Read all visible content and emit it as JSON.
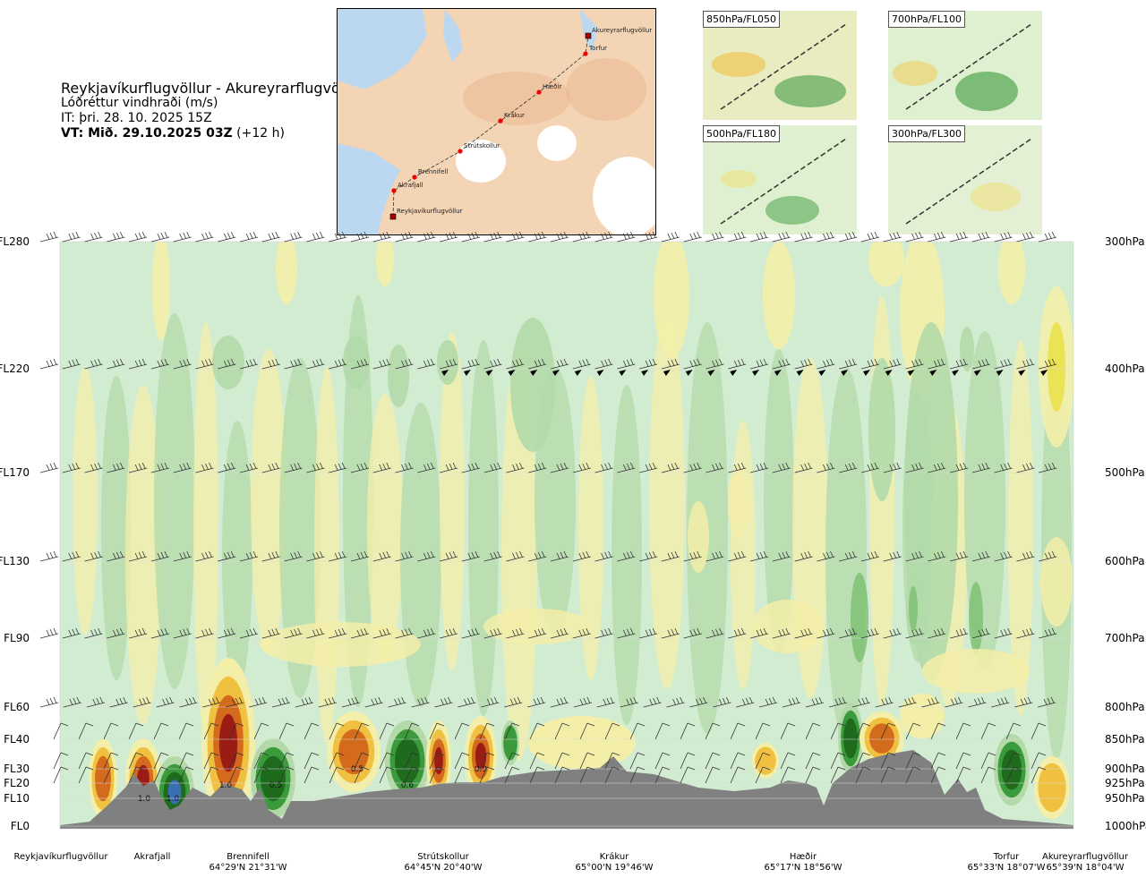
{
  "title": {
    "route": "Reykjavíkurflugvöllur - Akureyrarflugvöllur",
    "variable": "Lóðréttur vindhraði (m/s)",
    "it": "IT: þri. 28. 10. 2025 15Z",
    "vt_bold": "VT: Mið. 29.10.2025 03Z",
    "vt_rest": " (+12 h)"
  },
  "map": {
    "waypoints": [
      "Reykjavíkurflugvöllur",
      "Akrafjall",
      "Brennifell",
      "Strútskollur",
      "Krákur",
      "Hæðir",
      "Torfur",
      "Akureyrarflugvöllur"
    ]
  },
  "mini_maps": [
    {
      "label": "850hPa/FL050"
    },
    {
      "label": "700hPa/FL100"
    },
    {
      "label": "500hPa/FL180"
    },
    {
      "label": "300hPa/FL300"
    }
  ],
  "chart_data": {
    "type": "heatmap",
    "title": "Lóðréttur vindhraði (m/s)",
    "left_axis": [
      "FL0",
      "FL10",
      "FL20",
      "FL30",
      "FL40",
      "FL60",
      "FL90",
      "FL130",
      "FL170",
      "FL220",
      "FL280"
    ],
    "right_axis": [
      "1000hPa",
      "950hPa",
      "925hPa",
      "900hPa",
      "850hPa",
      "800hPa",
      "700hPa",
      "600hPa",
      "500hPa",
      "400hPa",
      "300hPa"
    ],
    "locations": [
      {
        "name": "Reykjavíkurflugvöllur",
        "coord": ""
      },
      {
        "name": "Akrafjall",
        "coord": ""
      },
      {
        "name": "Brennifell",
        "coord": "64°29'N 21°31'W"
      },
      {
        "name": "Strútskollur",
        "coord": "64°45'N 20°40'W"
      },
      {
        "name": "Krákur",
        "coord": "65°00'N 19°46'W"
      },
      {
        "name": "Hæðir",
        "coord": "65°17'N 18°56'W"
      },
      {
        "name": "Torfur",
        "coord": "65°33'N 18°07'W"
      },
      {
        "name": "Akureyrarflugvöllur",
        "coord": "65°39'N 18°04'W"
      }
    ],
    "contour_labels": [
      "1.0",
      "1.0",
      "1.0",
      "0.5",
      "0.5",
      "0.6",
      "0.9"
    ],
    "colors": {
      "neutral": "#d2ecd2",
      "pos_weak": "#f4efa8",
      "pos_mid": "#f0c040",
      "pos_strong": "#d36a1c",
      "pos_max": "#9b1c14",
      "neg_weak": "#b3d9a8",
      "neg_mid": "#3b9a3b",
      "neg_strong": "#1e6b1e",
      "neg_max": "#3b6fb4",
      "terrain": "#808080"
    }
  }
}
